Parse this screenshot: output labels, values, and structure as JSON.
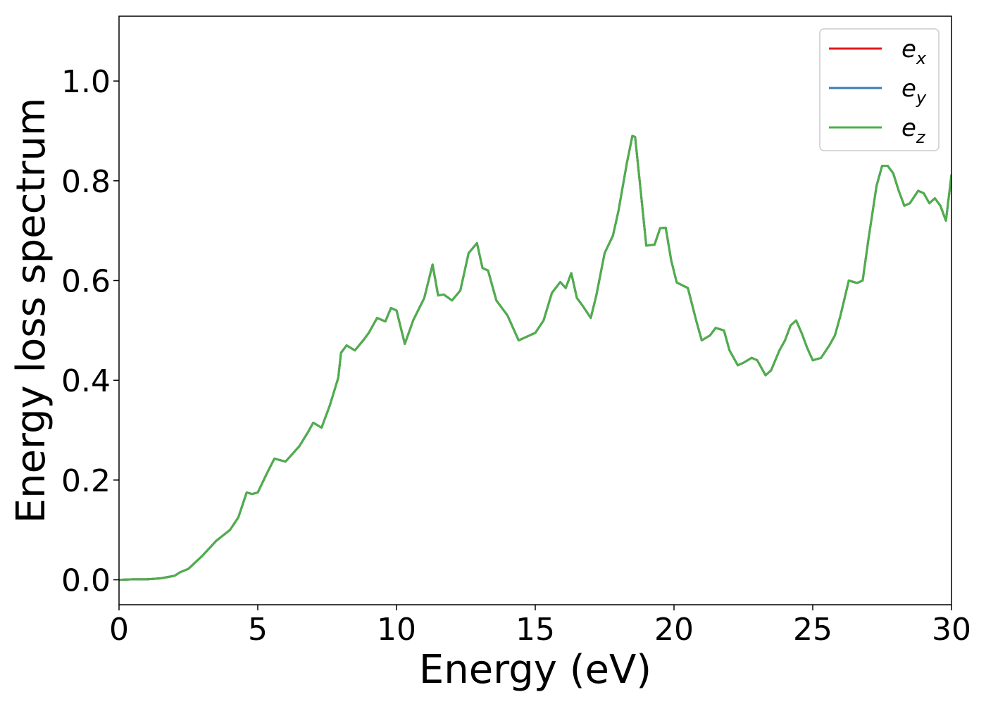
{
  "chart_data": {
    "type": "line",
    "title": "",
    "xlabel": "Energy (eV)",
    "ylabel": "Energy loss spectrum",
    "xlim": [
      0,
      30
    ],
    "ylim": [
      -0.05,
      1.13
    ],
    "xticks": [
      0,
      5,
      10,
      15,
      20,
      25,
      30
    ],
    "xtick_labels": [
      "0",
      "5",
      "10",
      "15",
      "20",
      "25",
      "30"
    ],
    "yticks": [
      0.0,
      0.2,
      0.4,
      0.6,
      0.8,
      1.0
    ],
    "ytick_labels": [
      "0.0",
      "0.2",
      "0.4",
      "0.6",
      "0.8",
      "1.0"
    ],
    "grid": false,
    "legend_position": "top-right",
    "x": [
      0,
      0.5,
      1.0,
      1.5,
      2.0,
      2.2,
      2.5,
      3.0,
      3.5,
      4.0,
      4.3,
      4.6,
      4.8,
      5.0,
      5.3,
      5.6,
      6.0,
      6.5,
      6.8,
      7.0,
      7.3,
      7.6,
      7.9,
      8.0,
      8.2,
      8.5,
      8.8,
      9.0,
      9.3,
      9.6,
      9.8,
      10.0,
      10.3,
      10.6,
      11.0,
      11.3,
      11.5,
      11.7,
      12.0,
      12.3,
      12.6,
      12.9,
      13.1,
      13.3,
      13.6,
      14.0,
      14.4,
      14.8,
      15.0,
      15.3,
      15.6,
      15.9,
      16.1,
      16.3,
      16.5,
      16.7,
      17.0,
      17.2,
      17.5,
      17.8,
      18.0,
      18.3,
      18.5,
      18.6,
      18.8,
      19.0,
      19.3,
      19.5,
      19.7,
      19.9,
      20.1,
      20.5,
      20.8,
      21.0,
      21.3,
      21.5,
      21.8,
      22.0,
      22.3,
      22.5,
      22.8,
      23.0,
      23.3,
      23.5,
      23.8,
      24.0,
      24.2,
      24.4,
      24.6,
      24.8,
      25.0,
      25.3,
      25.6,
      25.8,
      26.0,
      26.3,
      26.6,
      26.8,
      27.0,
      27.3,
      27.5,
      27.7,
      27.9,
      28.1,
      28.3,
      28.5,
      28.8,
      29.0,
      29.2,
      29.4,
      29.6,
      29.8,
      30.0
    ],
    "series": [
      {
        "name": "e_x",
        "label_base": "e",
        "label_sub": "x",
        "color": "#e41a1c",
        "values": [
          0.0,
          0.001,
          0.001,
          0.003,
          0.008,
          0.015,
          0.022,
          0.048,
          0.078,
          0.1,
          0.125,
          0.175,
          0.172,
          0.175,
          0.21,
          0.243,
          0.237,
          0.268,
          0.295,
          0.315,
          0.305,
          0.35,
          0.405,
          0.455,
          0.47,
          0.46,
          0.48,
          0.495,
          0.525,
          0.518,
          0.545,
          0.54,
          0.473,
          0.52,
          0.565,
          0.632,
          0.57,
          0.572,
          0.56,
          0.58,
          0.655,
          0.675,
          0.625,
          0.62,
          0.56,
          0.53,
          0.48,
          0.49,
          0.495,
          0.52,
          0.575,
          0.597,
          0.585,
          0.615,
          0.565,
          0.55,
          0.525,
          0.57,
          0.655,
          0.69,
          0.74,
          0.835,
          0.89,
          0.888,
          0.78,
          0.67,
          0.672,
          0.705,
          0.706,
          0.64,
          0.596,
          0.585,
          0.52,
          0.48,
          0.49,
          0.505,
          0.5,
          0.46,
          0.43,
          0.435,
          0.445,
          0.44,
          0.41,
          0.42,
          0.46,
          0.48,
          0.51,
          0.52,
          0.495,
          0.465,
          0.44,
          0.445,
          0.47,
          0.49,
          0.53,
          0.6,
          0.595,
          0.6,
          0.68,
          0.79,
          0.83,
          0.83,
          0.815,
          0.78,
          0.75,
          0.755,
          0.78,
          0.775,
          0.755,
          0.765,
          0.75,
          0.72,
          0.812
        ]
      },
      {
        "name": "e_y",
        "label_base": "e",
        "label_sub": "y",
        "color": "#377eb8",
        "values": [
          0.0,
          0.001,
          0.001,
          0.003,
          0.008,
          0.015,
          0.022,
          0.048,
          0.078,
          0.1,
          0.125,
          0.175,
          0.172,
          0.175,
          0.21,
          0.243,
          0.237,
          0.268,
          0.295,
          0.315,
          0.305,
          0.35,
          0.405,
          0.455,
          0.47,
          0.46,
          0.48,
          0.495,
          0.525,
          0.518,
          0.545,
          0.54,
          0.473,
          0.52,
          0.565,
          0.632,
          0.57,
          0.572,
          0.56,
          0.58,
          0.655,
          0.675,
          0.625,
          0.62,
          0.56,
          0.53,
          0.48,
          0.49,
          0.495,
          0.52,
          0.575,
          0.597,
          0.585,
          0.615,
          0.565,
          0.55,
          0.525,
          0.57,
          0.655,
          0.69,
          0.74,
          0.835,
          0.89,
          0.888,
          0.78,
          0.67,
          0.672,
          0.705,
          0.706,
          0.64,
          0.596,
          0.585,
          0.52,
          0.48,
          0.49,
          0.505,
          0.5,
          0.46,
          0.43,
          0.435,
          0.445,
          0.44,
          0.41,
          0.42,
          0.46,
          0.48,
          0.51,
          0.52,
          0.495,
          0.465,
          0.44,
          0.445,
          0.47,
          0.49,
          0.53,
          0.6,
          0.595,
          0.6,
          0.68,
          0.79,
          0.83,
          0.83,
          0.815,
          0.78,
          0.75,
          0.755,
          0.78,
          0.775,
          0.755,
          0.765,
          0.75,
          0.72,
          0.812
        ]
      },
      {
        "name": "e_z",
        "label_base": "e",
        "label_sub": "z",
        "color": "#4daf4a",
        "values": [
          0.0,
          0.001,
          0.001,
          0.003,
          0.008,
          0.015,
          0.022,
          0.048,
          0.078,
          0.1,
          0.125,
          0.175,
          0.172,
          0.175,
          0.21,
          0.243,
          0.237,
          0.268,
          0.295,
          0.315,
          0.305,
          0.35,
          0.405,
          0.455,
          0.47,
          0.46,
          0.48,
          0.495,
          0.525,
          0.518,
          0.545,
          0.54,
          0.473,
          0.52,
          0.565,
          0.632,
          0.57,
          0.572,
          0.56,
          0.58,
          0.655,
          0.675,
          0.625,
          0.62,
          0.56,
          0.53,
          0.48,
          0.49,
          0.495,
          0.52,
          0.575,
          0.597,
          0.585,
          0.615,
          0.565,
          0.55,
          0.525,
          0.57,
          0.655,
          0.69,
          0.74,
          0.835,
          0.89,
          0.888,
          0.78,
          0.67,
          0.672,
          0.705,
          0.706,
          0.64,
          0.596,
          0.585,
          0.52,
          0.48,
          0.49,
          0.505,
          0.5,
          0.46,
          0.43,
          0.435,
          0.445,
          0.44,
          0.41,
          0.42,
          0.46,
          0.48,
          0.51,
          0.52,
          0.495,
          0.465,
          0.44,
          0.445,
          0.47,
          0.49,
          0.53,
          0.6,
          0.595,
          0.6,
          0.68,
          0.79,
          0.83,
          0.83,
          0.815,
          0.78,
          0.75,
          0.755,
          0.78,
          0.775,
          0.755,
          0.765,
          0.75,
          0.72,
          0.812
        ]
      }
    ]
  }
}
